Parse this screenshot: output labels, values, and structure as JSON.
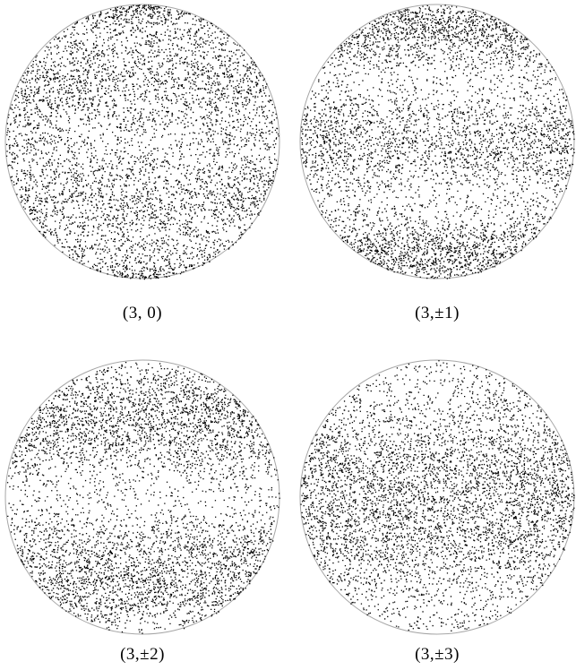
{
  "figure": {
    "panels": [
      {
        "label": "(3, 0)",
        "m": 0
      },
      {
        "label": "(3,±1)",
        "m": 1
      },
      {
        "label": "(3,±2)",
        "m": 2
      },
      {
        "label": "(3,±3)",
        "m": 3
      }
    ],
    "l": 3,
    "ink_color": "#000000",
    "background_color": "#ffffff"
  }
}
